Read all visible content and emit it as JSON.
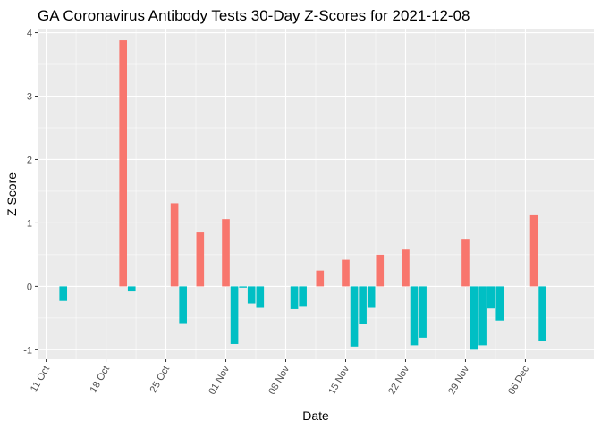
{
  "chart_data": {
    "type": "bar",
    "title": "GA Coronavirus Antibody Tests 30-Day Z-Scores for 2021-12-08",
    "xlabel": "Date",
    "ylabel": "Z Score",
    "grid": true,
    "legend": "none",
    "ylim": [
      -1.15,
      4.05
    ],
    "xlim": [
      "2021-10-10",
      "2021-12-14"
    ],
    "x_ticks": [
      {
        "date": "2021-10-11",
        "label": "11 Oct"
      },
      {
        "date": "2021-10-18",
        "label": "18 Oct"
      },
      {
        "date": "2021-10-25",
        "label": "25 Oct"
      },
      {
        "date": "2021-11-01",
        "label": "01 Nov"
      },
      {
        "date": "2021-11-08",
        "label": "08 Nov"
      },
      {
        "date": "2021-11-15",
        "label": "15 Nov"
      },
      {
        "date": "2021-11-22",
        "label": "22 Nov"
      },
      {
        "date": "2021-11-29",
        "label": "29 Nov"
      },
      {
        "date": "2021-12-06",
        "label": "06 Dec"
      }
    ],
    "y_ticks": [
      -1,
      0,
      1,
      2,
      3,
      4
    ],
    "colors": {
      "positive": "#F8766D",
      "negative": "#00BFC4"
    },
    "points": [
      {
        "date": "2021-10-13",
        "value": -0.23
      },
      {
        "date": "2021-10-20",
        "value": 3.88
      },
      {
        "date": "2021-10-21",
        "value": -0.08
      },
      {
        "date": "2021-10-26",
        "value": 1.31
      },
      {
        "date": "2021-10-27",
        "value": -0.58
      },
      {
        "date": "2021-10-29",
        "value": 0.85
      },
      {
        "date": "2021-11-01",
        "value": 1.06
      },
      {
        "date": "2021-11-02",
        "value": -0.91
      },
      {
        "date": "2021-11-03",
        "value": -0.02
      },
      {
        "date": "2021-11-04",
        "value": -0.27
      },
      {
        "date": "2021-11-05",
        "value": -0.34
      },
      {
        "date": "2021-11-09",
        "value": -0.36
      },
      {
        "date": "2021-11-10",
        "value": -0.31
      },
      {
        "date": "2021-11-12",
        "value": 0.25
      },
      {
        "date": "2021-11-15",
        "value": 0.42
      },
      {
        "date": "2021-11-16",
        "value": -0.95
      },
      {
        "date": "2021-11-17",
        "value": -0.6
      },
      {
        "date": "2021-11-18",
        "value": -0.34
      },
      {
        "date": "2021-11-19",
        "value": 0.5
      },
      {
        "date": "2021-11-22",
        "value": 0.58
      },
      {
        "date": "2021-11-23",
        "value": -0.93
      },
      {
        "date": "2021-11-24",
        "value": -0.81
      },
      {
        "date": "2021-11-29",
        "value": 0.75
      },
      {
        "date": "2021-11-30",
        "value": -1.0
      },
      {
        "date": "2021-12-01",
        "value": -0.93
      },
      {
        "date": "2021-12-02",
        "value": -0.35
      },
      {
        "date": "2021-12-03",
        "value": -0.54
      },
      {
        "date": "2021-12-07",
        "value": 1.12
      },
      {
        "date": "2021-12-08",
        "value": -0.86
      }
    ]
  }
}
